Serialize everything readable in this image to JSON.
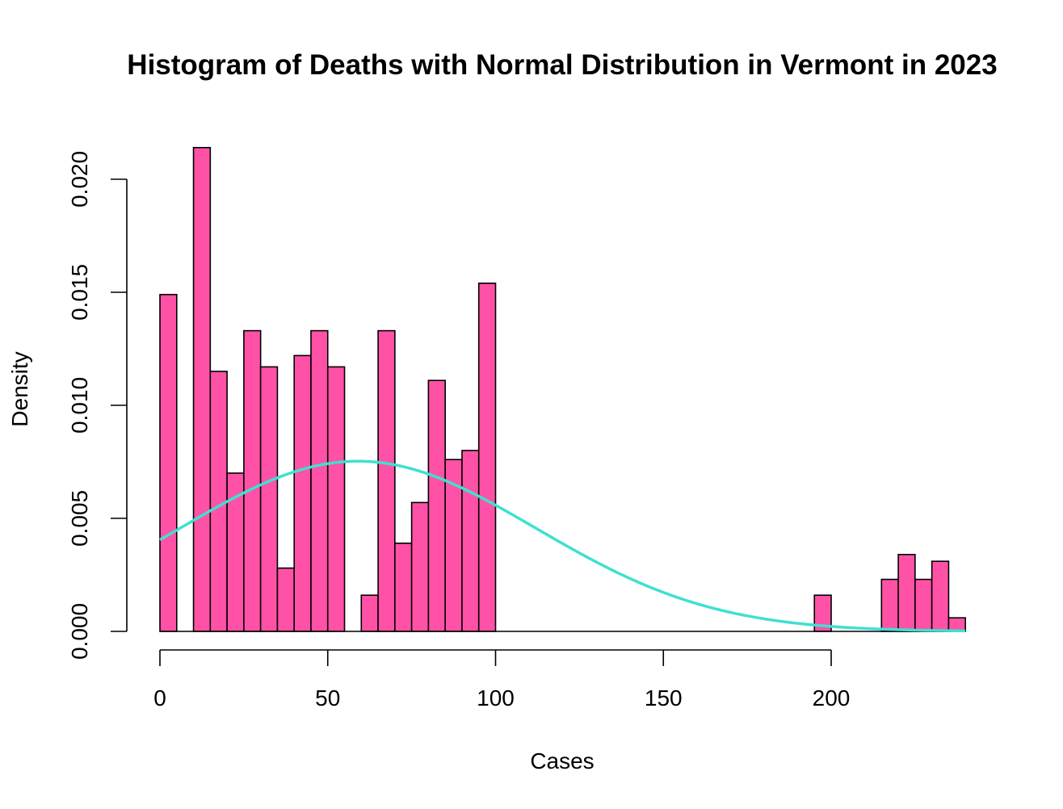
{
  "chart_data": {
    "type": "bar",
    "title": "Histogram of Deaths with Normal Distribution in Vermont in 2023",
    "xlabel": "Cases",
    "ylabel": "Density",
    "xlim": [
      0,
      240
    ],
    "ylim": [
      0,
      0.02
    ],
    "x_ticks": [
      "0",
      "50",
      "100",
      "150",
      "200"
    ],
    "x_tick_values": [
      0,
      50,
      100,
      150,
      200
    ],
    "y_ticks": [
      "0.000",
      "0.005",
      "0.010",
      "0.015",
      "0.020"
    ],
    "y_tick_values": [
      0,
      0.005,
      0.01,
      0.015,
      0.02
    ],
    "bin_width": 5,
    "bins": [
      {
        "start": 0,
        "density": 0.0149
      },
      {
        "start": 10,
        "density": 0.0214
      },
      {
        "start": 15,
        "density": 0.0115
      },
      {
        "start": 20,
        "density": 0.007
      },
      {
        "start": 25,
        "density": 0.0133
      },
      {
        "start": 30,
        "density": 0.0117
      },
      {
        "start": 35,
        "density": 0.0028
      },
      {
        "start": 40,
        "density": 0.0122
      },
      {
        "start": 45,
        "density": 0.0133
      },
      {
        "start": 50,
        "density": 0.0117
      },
      {
        "start": 60,
        "density": 0.0016
      },
      {
        "start": 65,
        "density": 0.0133
      },
      {
        "start": 70,
        "density": 0.0039
      },
      {
        "start": 75,
        "density": 0.0057
      },
      {
        "start": 80,
        "density": 0.0111
      },
      {
        "start": 85,
        "density": 0.0076
      },
      {
        "start": 90,
        "density": 0.008
      },
      {
        "start": 95,
        "density": 0.0154
      },
      {
        "start": 195,
        "density": 0.0016
      },
      {
        "start": 215,
        "density": 0.0023
      },
      {
        "start": 220,
        "density": 0.0034
      },
      {
        "start": 225,
        "density": 0.0023
      },
      {
        "start": 230,
        "density": 0.0031
      },
      {
        "start": 235,
        "density": 0.0006
      }
    ],
    "normal_curve": {
      "mean": 59,
      "sd": 53,
      "range": [
        0,
        240
      ]
    },
    "colors": {
      "bars": "#FF52A6",
      "bar_border": "#000000",
      "curve": "#40E0D0"
    },
    "grid": false,
    "legend": "none"
  }
}
